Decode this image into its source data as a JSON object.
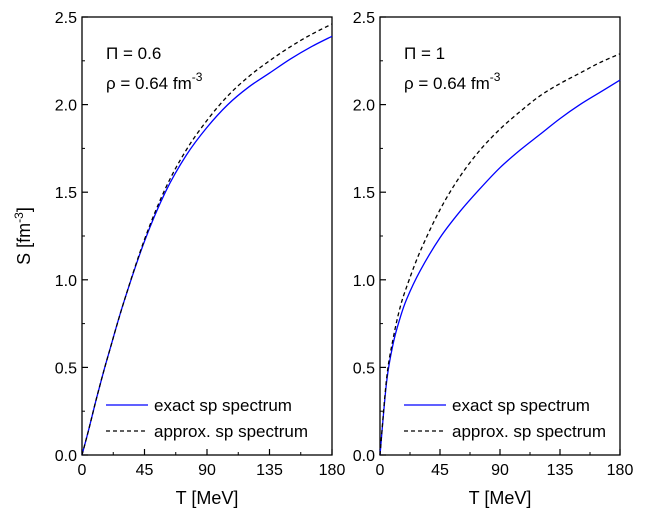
{
  "figure": {
    "ylabel": "S [fm",
    "ylabel_sup": "-3",
    "ylabel_end": "]"
  },
  "chart_data": [
    {
      "type": "line",
      "title": "",
      "xlabel": "T [MeV]",
      "ylabel": "S [fm-3]",
      "xlim": [
        0,
        180
      ],
      "ylim": [
        0,
        2.5
      ],
      "xticks": [
        "0",
        "45",
        "90",
        "135",
        "180"
      ],
      "yticks": [
        "0.0",
        "0.5",
        "1.0",
        "1.5",
        "2.0",
        "2.5"
      ],
      "annotation_line1": "Π = 0.6",
      "annotation_line2_base": "ρ = 0.64 fm",
      "annotation_line2_sup": "-3",
      "legend_position": "bottom-right",
      "series": [
        {
          "name": "exact sp spectrum",
          "color": "#0000ff",
          "dash": "solid",
          "x": [
            0,
            5,
            10,
            15,
            20,
            30,
            45,
            60,
            75,
            90,
            105,
            120,
            135,
            150,
            165,
            180
          ],
          "y": [
            0.0,
            0.15,
            0.31,
            0.46,
            0.6,
            0.87,
            1.22,
            1.5,
            1.71,
            1.87,
            2.0,
            2.1,
            2.18,
            2.26,
            2.33,
            2.39
          ]
        },
        {
          "name": "approx. sp spectrum",
          "color": "#000000",
          "dash": "dashed",
          "x": [
            0,
            5,
            10,
            15,
            20,
            30,
            45,
            60,
            75,
            90,
            105,
            120,
            135,
            150,
            165,
            180
          ],
          "y": [
            0.0,
            0.15,
            0.31,
            0.46,
            0.6,
            0.87,
            1.23,
            1.52,
            1.74,
            1.91,
            2.05,
            2.16,
            2.25,
            2.33,
            2.4,
            2.46
          ]
        }
      ]
    },
    {
      "type": "line",
      "title": "",
      "xlabel": "T [MeV]",
      "ylabel": "",
      "xlim": [
        0,
        180
      ],
      "ylim": [
        0,
        2.5
      ],
      "xticks": [
        "0",
        "45",
        "90",
        "135",
        "180"
      ],
      "yticks": [
        "0.0",
        "0.5",
        "1.0",
        "1.5",
        "2.0",
        "2.5"
      ],
      "annotation_line1": "Π = 1",
      "annotation_line2_base": "ρ = 0.64 fm",
      "annotation_line2_sup": "-3",
      "legend_position": "bottom-right",
      "series": [
        {
          "name": "exact sp spectrum",
          "color": "#0000ff",
          "dash": "solid",
          "x": [
            0,
            5,
            10,
            15,
            20,
            30,
            45,
            60,
            75,
            90,
            105,
            120,
            135,
            150,
            165,
            180
          ],
          "y": [
            0.0,
            0.42,
            0.64,
            0.78,
            0.89,
            1.05,
            1.24,
            1.39,
            1.52,
            1.64,
            1.74,
            1.83,
            1.92,
            2.0,
            2.07,
            2.14
          ]
        },
        {
          "name": "approx. sp spectrum",
          "color": "#000000",
          "dash": "dashed",
          "x": [
            0,
            5,
            10,
            15,
            20,
            30,
            45,
            60,
            75,
            90,
            105,
            120,
            135,
            150,
            165,
            180
          ],
          "y": [
            0.0,
            0.44,
            0.67,
            0.84,
            0.96,
            1.16,
            1.4,
            1.59,
            1.74,
            1.86,
            1.96,
            2.05,
            2.12,
            2.18,
            2.24,
            2.29
          ]
        }
      ]
    }
  ]
}
